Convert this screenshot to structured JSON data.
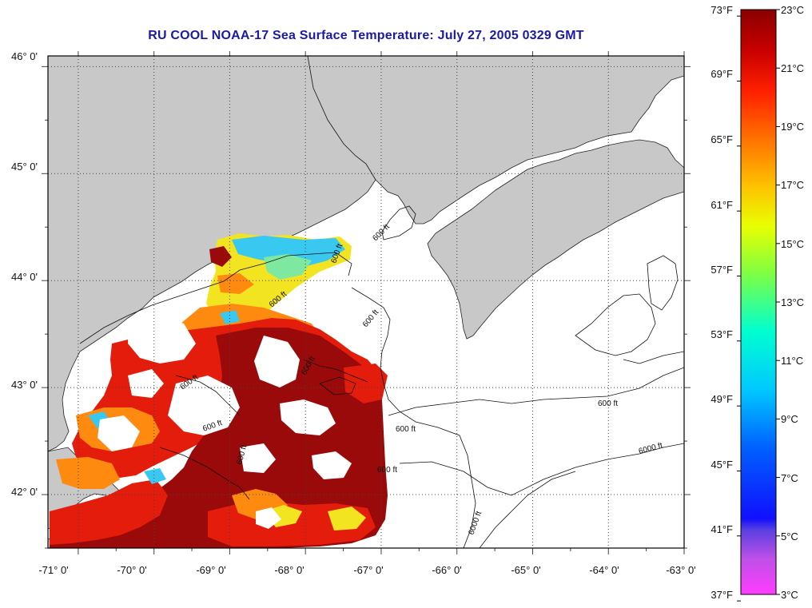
{
  "title": "RU COOL  NOAA-17  Sea Surface Temperature:  July 27, 2005 0329 GMT",
  "axes": {
    "lon_labels": [
      "-71° 0'",
      "-70° 0'",
      "-69° 0'",
      "-68° 0'",
      "-67° 0'",
      "-66° 0'",
      "-65° 0'",
      "-64° 0'",
      "-63° 0'"
    ],
    "lat_labels": [
      "46° 0'",
      "45° 0'",
      "44° 0'",
      "43° 0'",
      "42° 0'"
    ],
    "lon_range": [
      -71.4,
      -63
    ],
    "lat_range": [
      41.5,
      46.1
    ]
  },
  "colorbar": {
    "fahrenheit_labels": [
      "73°F",
      "69°F",
      "65°F",
      "61°F",
      "57°F",
      "53°F",
      "49°F",
      "45°F",
      "41°F",
      "37°F"
    ],
    "celsius_labels": [
      "23°C",
      "21°C",
      "19°C",
      "17°C",
      "15°C",
      "13°C",
      "11°C",
      "9°C",
      "7°C",
      "5°C",
      "3°C"
    ],
    "celsius_range": [
      3,
      23
    ],
    "colors": [
      "#ff3cff",
      "#b050e0",
      "#2020ff",
      "#00a0ff",
      "#00ffe0",
      "#40ff80",
      "#e0ff00",
      "#ffb000",
      "#ff2000",
      "#a00000",
      "#8a0000"
    ]
  },
  "contour_labels": [
    "600 ft",
    "600 ft",
    "600 ft",
    "600 ft",
    "600 ft",
    "600 ft",
    "600 ft",
    "600 ft",
    "600 ft",
    "600 ft",
    "600 ft",
    "6000 ft",
    "6000 ft"
  ],
  "colors": {
    "land": "#c8c8c8",
    "ocean": "#ffffff",
    "title": "#1a1aa6",
    "sst_dark": "#9a0a0a",
    "sst_red": "#e41c0c",
    "sst_orange": "#ff8a10",
    "sst_yellow": "#f4e020",
    "sst_cyan": "#30c8f0"
  }
}
